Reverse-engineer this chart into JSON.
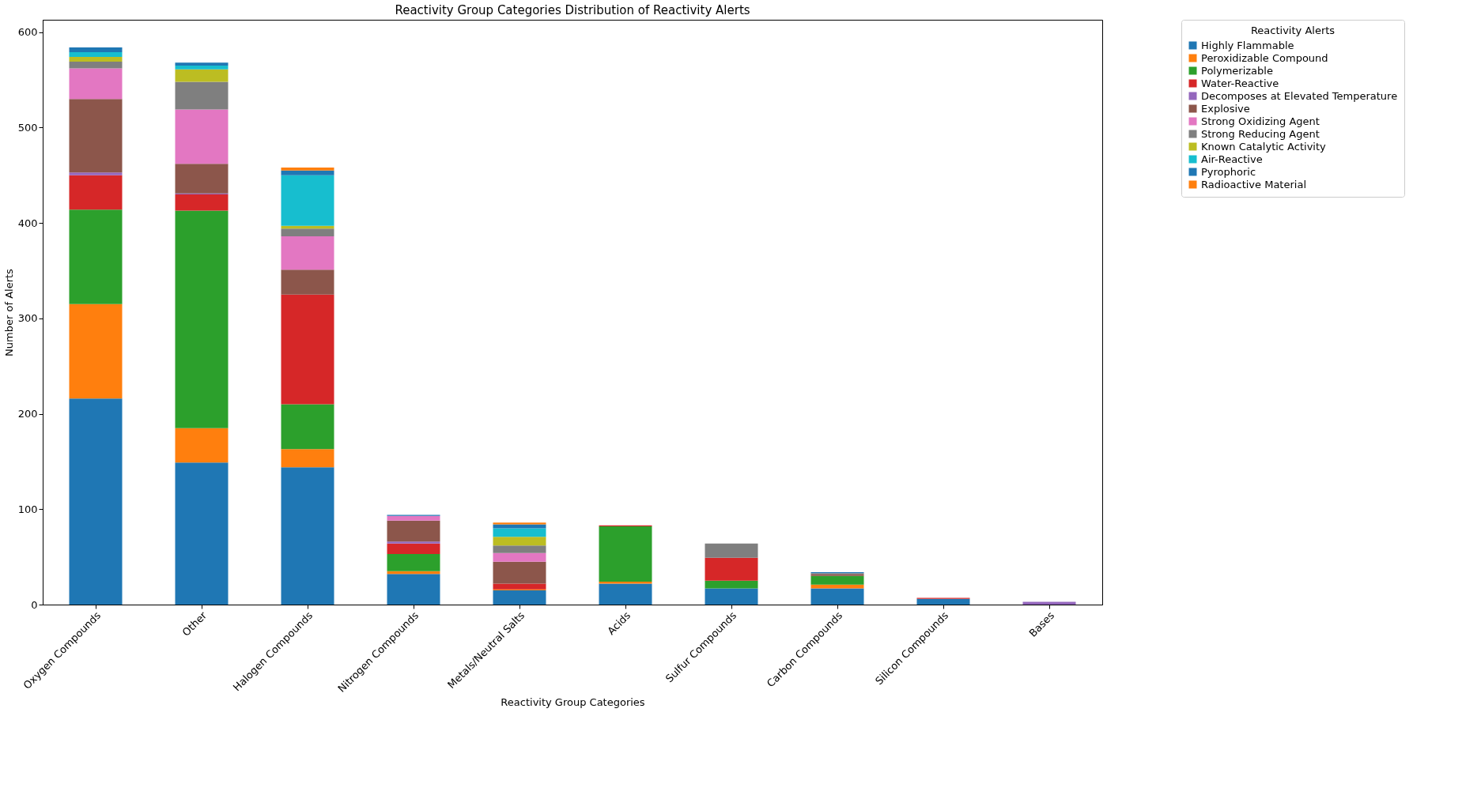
{
  "chart_data": {
    "type": "bar",
    "stacked": true,
    "title": "Reactivity Group Categories Distribution of Reactivity Alerts",
    "xlabel": "Reactivity Group Categories",
    "ylabel": "Number of Alerts",
    "legend_title": "Reactivity Alerts",
    "categories": [
      "Oxygen Compounds",
      "Other",
      "Halogen Compounds",
      "Nitrogen Compounds",
      "Metals/Neutral Salts",
      "Acids",
      "Sulfur Compounds",
      "Carbon Compounds",
      "Silicon Compounds",
      "Bases"
    ],
    "series": [
      {
        "name": "Highly Flammable",
        "color": "#1f77b4",
        "values": [
          216,
          149,
          144,
          32,
          15,
          22,
          17,
          17,
          6,
          0
        ]
      },
      {
        "name": "Peroxidizable Compound",
        "color": "#ff7f0e",
        "values": [
          99,
          36,
          19,
          3,
          1,
          2,
          0,
          4,
          0,
          0
        ]
      },
      {
        "name": "Polymerizable",
        "color": "#2ca02c",
        "values": [
          99,
          228,
          47,
          18,
          0,
          58,
          8,
          9,
          0,
          0
        ]
      },
      {
        "name": "Water-Reactive",
        "color": "#d62728",
        "values": [
          36,
          17,
          115,
          11,
          6,
          1,
          24,
          0,
          1,
          0
        ]
      },
      {
        "name": "Decomposes at Elevated Temperature",
        "color": "#9467bd",
        "values": [
          3,
          1,
          0,
          2,
          0,
          0,
          0,
          0,
          0,
          3
        ]
      },
      {
        "name": "Explosive",
        "color": "#8c564b",
        "values": [
          77,
          31,
          26,
          22,
          23,
          0,
          0,
          2,
          0,
          0
        ]
      },
      {
        "name": "Strong Oxidizing Agent",
        "color": "#e377c2",
        "values": [
          32,
          57,
          35,
          5,
          9,
          0,
          0,
          0,
          0,
          0
        ]
      },
      {
        "name": "Strong Reducing Agent",
        "color": "#7f7f7f",
        "values": [
          7,
          29,
          8,
          0,
          8,
          0,
          15,
          1,
          0,
          0
        ]
      },
      {
        "name": "Known Catalytic Activity",
        "color": "#bcbd22",
        "values": [
          5,
          13,
          3,
          0,
          9,
          0,
          0,
          0,
          0,
          0
        ]
      },
      {
        "name": "Air-Reactive",
        "color": "#17becf",
        "values": [
          5,
          4,
          53,
          0,
          9,
          0,
          0,
          0,
          0,
          0
        ]
      },
      {
        "name": "Pyrophoric",
        "color": "#1f77b4",
        "values": [
          5,
          3,
          5,
          1,
          4,
          0,
          0,
          1,
          0,
          0
        ]
      },
      {
        "name": "Radioactive Material",
        "color": "#ff7f0e",
        "values": [
          0,
          0,
          3,
          0,
          2,
          0,
          0,
          0,
          0,
          0
        ]
      }
    ],
    "ylim": [
      0,
      613
    ],
    "yticks": [
      0,
      100,
      200,
      300,
      400,
      500,
      600
    ],
    "grid": false,
    "legend": "top right"
  }
}
